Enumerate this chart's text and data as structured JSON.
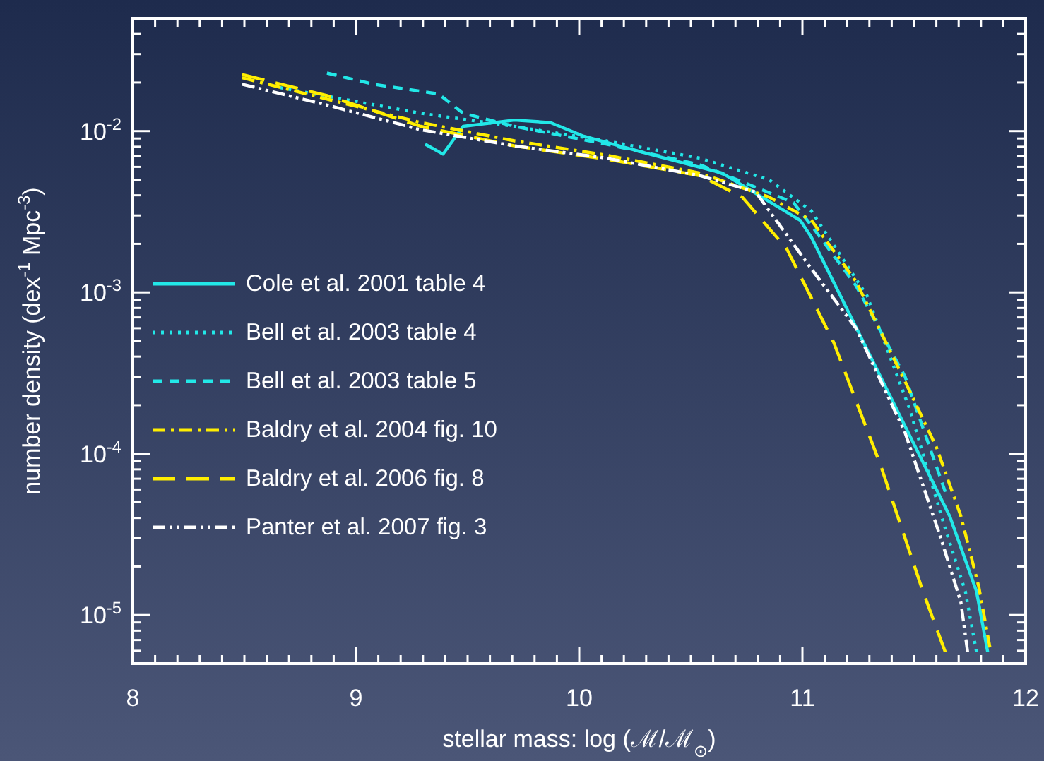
{
  "chart_data": {
    "type": "line",
    "xlabel": "stellar mass: log (ℳ/ℳ$_{⊙}$)",
    "ylabel": "number density (dex$^{-1}$ Mpc$^{-3}$)",
    "log": "y",
    "grid": false,
    "legend": "left",
    "marker": "none",
    "xlim": [
      8,
      12
    ],
    "ylim": [
      5e-06,
      0.05
    ],
    "xticks": [
      8,
      {
        "value": 8.1,
        "label": null
      },
      {
        "value": 8.2,
        "label": null
      },
      {
        "value": 8.3,
        "label": null
      },
      {
        "value": 8.4,
        "label": null
      },
      {
        "value": 8.5,
        "label": null
      },
      {
        "value": 8.6,
        "label": null
      },
      {
        "value": 8.7,
        "label": null
      },
      {
        "value": 8.8,
        "label": null
      },
      {
        "value": 8.9,
        "label": null
      },
      9,
      {
        "value": 9.1,
        "label": null
      },
      {
        "value": 9.2,
        "label": null
      },
      {
        "value": 9.3,
        "label": null
      },
      {
        "value": 9.4,
        "label": null
      },
      {
        "value": 9.5,
        "label": null
      },
      {
        "value": 9.6,
        "label": null
      },
      {
        "value": 9.7,
        "label": null
      },
      {
        "value": 9.8,
        "label": null
      },
      {
        "value": 9.9,
        "label": null
      },
      10,
      {
        "value": 10.1,
        "label": null
      },
      {
        "value": 10.2,
        "label": null
      },
      {
        "value": 10.3,
        "label": null
      },
      {
        "value": 10.4,
        "label": null
      },
      {
        "value": 10.5,
        "label": null
      },
      {
        "value": 10.6,
        "label": null
      },
      {
        "value": 10.7,
        "label": null
      },
      {
        "value": 10.8,
        "label": null
      },
      {
        "value": 10.9,
        "label": null
      },
      11,
      {
        "value": 11.1,
        "label": null
      },
      {
        "value": 11.2,
        "label": null
      },
      {
        "value": 11.3,
        "label": null
      },
      {
        "value": 11.4,
        "label": null
      },
      {
        "value": 11.5,
        "label": null
      },
      {
        "value": 11.6,
        "label": null
      },
      {
        "value": 11.7,
        "label": null
      },
      {
        "value": 11.8,
        "label": null
      },
      {
        "value": 11.9,
        "label": null
      },
      12
    ],
    "yticks": [
      {
        "value": 6e-06,
        "label": null
      },
      {
        "value": 7e-06,
        "label": null
      },
      {
        "value": 8e-06,
        "label": null
      },
      {
        "value": 9e-06,
        "label": null
      },
      {
        "value": 1e-05,
        "label": "10$^{-5}$"
      },
      {
        "value": 2e-05,
        "label": null
      },
      {
        "value": 3e-05,
        "label": null
      },
      {
        "value": 4e-05,
        "label": null
      },
      {
        "value": 5e-05,
        "label": null
      },
      {
        "value": 6e-05,
        "label": null
      },
      {
        "value": 7e-05,
        "label": null
      },
      {
        "value": 8e-05,
        "label": null
      },
      {
        "value": 9e-05,
        "label": null
      },
      {
        "value": 0.0001,
        "label": "10$^{-4}$"
      },
      {
        "value": 0.0002,
        "label": null
      },
      {
        "value": 0.0003,
        "label": null
      },
      {
        "value": 0.0004,
        "label": null
      },
      {
        "value": 0.0005,
        "label": null
      },
      {
        "value": 0.0006,
        "label": null
      },
      {
        "value": 0.0007,
        "label": null
      },
      {
        "value": 0.0008,
        "label": null
      },
      {
        "value": 0.0009,
        "label": null
      },
      {
        "value": 0.001,
        "label": "10$^{-3}$"
      },
      {
        "value": 0.002,
        "label": null
      },
      {
        "value": 0.003,
        "label": null
      },
      {
        "value": 0.004,
        "label": null
      },
      {
        "value": 0.005,
        "label": null
      },
      {
        "value": 0.006,
        "label": null
      },
      {
        "value": 0.007,
        "label": null
      },
      {
        "value": 0.008,
        "label": null
      },
      {
        "value": 0.009,
        "label": null
      },
      {
        "value": 0.01,
        "label": "10$^{-2}$"
      },
      {
        "value": 0.02,
        "label": null
      },
      {
        "value": 0.03,
        "label": null
      },
      {
        "value": 0.04,
        "label": null
      }
    ],
    "series": [
      {
        "name": "Cole et al. 2001 table 4",
        "color": "#22e8e8",
        "line_style": "solid",
        "x": [
          9.31,
          9.39,
          9.48,
          9.71,
          9.87,
          10.02,
          10.33,
          10.64,
          10.99,
          11.04,
          11.41,
          11.66,
          11.78,
          11.83
        ],
        "values": [
          0.0083,
          0.0072,
          0.0107,
          0.0117,
          0.0113,
          0.0093,
          0.0071,
          0.0055,
          0.0028,
          0.0022,
          0.000204,
          4.1e-05,
          1.4e-05,
          5.9e-06
        ]
      },
      {
        "name": "Bell et al. 2003 table 4",
        "color": "#22e8e8",
        "line_style": "dotted",
        "x": [
          8.66,
          9.29,
          9.71,
          10.12,
          10.54,
          10.85,
          11.04,
          11.29,
          11.48,
          11.63,
          11.73,
          11.78
        ],
        "values": [
          0.0186,
          0.0129,
          0.0107,
          0.0087,
          0.0068,
          0.005,
          0.0032,
          0.00095,
          0.00019,
          3.8e-05,
          1.4e-05,
          5.9e-06
        ]
      },
      {
        "name": "Bell et al. 2003 table 5",
        "color": "#22e8e8",
        "line_style": "dashed",
        "x": [
          8.87,
          9.08,
          9.37,
          9.48,
          9.71,
          10.12,
          10.54,
          10.96,
          11.04,
          11.24,
          11.46,
          11.64
        ],
        "values": [
          0.0229,
          0.0195,
          0.017,
          0.0129,
          0.0107,
          0.0083,
          0.0062,
          0.0036,
          0.0026,
          0.0011,
          0.0003,
          5.8e-05
        ]
      },
      {
        "name": "Baldry et al. 2004 fig. 10",
        "color": "#ffee00",
        "line_style": "dashdot",
        "x": [
          8.49,
          8.87,
          9.29,
          9.71,
          10.12,
          10.54,
          10.85,
          11.04,
          11.24,
          11.46,
          11.6,
          11.71,
          11.79,
          11.84
        ],
        "values": [
          0.0214,
          0.0158,
          0.0113,
          0.0087,
          0.0071,
          0.0055,
          0.0039,
          0.0028,
          0.00117,
          0.00028,
          0.00011,
          4.1e-05,
          1.5e-05,
          6.3e-06
        ]
      },
      {
        "name": "Baldry et al. 2006 fig. 8",
        "color": "#ffee00",
        "line_style": "longdash",
        "x": [
          8.49,
          8.87,
          9.29,
          9.71,
          10.12,
          10.54,
          10.73,
          10.93,
          11.14,
          11.35,
          11.54,
          11.64
        ],
        "values": [
          0.0224,
          0.0166,
          0.0107,
          0.0081,
          0.0067,
          0.0053,
          0.0039,
          0.00186,
          0.00049,
          8.5e-05,
          1.4e-05,
          5.9e-06
        ]
      },
      {
        "name": "Panter et al. 2007 fig. 3",
        "color": "#ffffff",
        "line_style": "dashdotdot",
        "x": [
          8.49,
          8.87,
          9.29,
          9.71,
          10.12,
          10.54,
          10.79,
          11.04,
          11.24,
          11.46,
          11.62,
          11.71,
          11.74
        ],
        "values": [
          0.0195,
          0.0145,
          0.0102,
          0.0081,
          0.0068,
          0.0053,
          0.0042,
          0.0014,
          0.0006,
          0.000135,
          3e-05,
          1.2e-05,
          5.9e-06
        ]
      }
    ]
  }
}
